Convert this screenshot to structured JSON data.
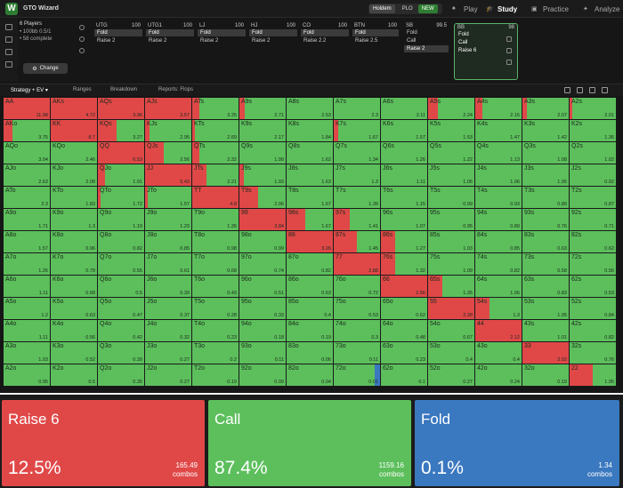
{
  "app": {
    "title": "GTO Wizard",
    "logo": "W"
  },
  "mode_toggle": [
    "Holdem",
    "PLO"
  ],
  "mode_new_badge": "NEW",
  "nav": [
    {
      "label": "Play",
      "icon": "spade-icon",
      "active": false
    },
    {
      "label": "Study",
      "icon": "graduation-cap-icon",
      "active": true
    },
    {
      "label": "Practice",
      "icon": "controller-icon",
      "active": false
    },
    {
      "label": "Analyze",
      "icon": "lightbulb-icon",
      "active": false
    }
  ],
  "game": {
    "players": "6 Players",
    "stakes": "• 100bb 0.5/1",
    "complete": "• 58 complete",
    "change_label": "Change"
  },
  "positions": [
    {
      "name": "UTG",
      "stack": "100",
      "actions": [
        "Fold",
        "Raise 2"
      ],
      "selected": 0
    },
    {
      "name": "UTG1",
      "stack": "100",
      "actions": [
        "Fold",
        "Raise 2"
      ],
      "selected": 0
    },
    {
      "name": "LJ",
      "stack": "100",
      "actions": [
        "Fold",
        "Raise 2"
      ],
      "selected": 0
    },
    {
      "name": "HJ",
      "stack": "100",
      "actions": [
        "Fold",
        "Raise 2"
      ],
      "selected": 0
    },
    {
      "name": "CO",
      "stack": "100",
      "actions": [
        "Fold",
        "Raise 2.2"
      ],
      "selected": 0
    },
    {
      "name": "BTN",
      "stack": "100",
      "actions": [
        "Fold",
        "Raise 2.5"
      ],
      "selected": 0
    },
    {
      "name": "SB",
      "stack": "99.5",
      "actions": [
        "Fold",
        "Call",
        "Raise 2"
      ],
      "selected": 2
    },
    {
      "name": "BB",
      "stack": "98",
      "actions": [
        "Fold",
        "Call",
        "Raise 6"
      ],
      "selected": -1,
      "current": true
    }
  ],
  "tabs": [
    "Strategy + EV",
    "Ranges",
    "Breakdown",
    "Reports: Flops"
  ],
  "colors": {
    "raise": "#e04848",
    "call": "#5cbf5c",
    "fold": "#3a78c0",
    "accent": "#5ab36a"
  },
  "grid": {
    "rows": [
      [
        [
          "AA",
          "11.98",
          1
        ],
        [
          "AKs",
          "4.72",
          1
        ],
        [
          "AQs",
          "3.96",
          1
        ],
        [
          "AJs",
          "3.57",
          1
        ],
        [
          "ATs",
          "3.25",
          0.15
        ],
        [
          "A9s",
          "2.71",
          0.12
        ],
        [
          "A8s",
          "2.53",
          0
        ],
        [
          "A7s",
          "2.3",
          0
        ],
        [
          "A6s",
          "2.11",
          0
        ],
        [
          "A5s",
          "2.24",
          0.22
        ],
        [
          "A4s",
          "2.15",
          0.15
        ],
        [
          "A3s",
          "2.07",
          0.1
        ],
        [
          "A2s",
          "2.01",
          0.05
        ]
      ],
      [
        [
          "AKo",
          "3.75",
          0.2
        ],
        [
          "KK",
          "8.7",
          1
        ],
        [
          "KQs",
          "3.27",
          0.4
        ],
        [
          "KJs",
          "2.95",
          0.1
        ],
        [
          "KTs",
          "2.69",
          0.05
        ],
        [
          "K9s",
          "2.17",
          0
        ],
        [
          "K8s",
          "1.84",
          0
        ],
        [
          "K7s",
          "1.67",
          0.1
        ],
        [
          "K6s",
          "1.57",
          0
        ],
        [
          "K5s",
          "1.53",
          0
        ],
        [
          "K4s",
          "1.47",
          0
        ],
        [
          "K3s",
          "1.42",
          0
        ],
        [
          "K2s",
          "1.36",
          0
        ]
      ],
      [
        [
          "AQo",
          "3.04",
          0
        ],
        [
          "KQo",
          "2.46",
          0
        ],
        [
          "QQ",
          "6.53",
          1
        ],
        [
          "QJs",
          "2.56",
          0.4
        ],
        [
          "QTs",
          "2.32",
          0.15
        ],
        [
          "Q9s",
          "1.99",
          0
        ],
        [
          "Q8s",
          "1.62",
          0
        ],
        [
          "Q7s",
          "1.34",
          0
        ],
        [
          "Q6s",
          "1.26",
          0
        ],
        [
          "Q5s",
          "1.22",
          0
        ],
        [
          "Q4s",
          "1.13",
          0
        ],
        [
          "Q3s",
          "1.08",
          0
        ],
        [
          "Q2s",
          "1.02",
          0
        ]
      ],
      [
        [
          "AJo",
          "2.63",
          0
        ],
        [
          "KJo",
          "2.08",
          0
        ],
        [
          "QJo",
          "1.91",
          0.15
        ],
        [
          "JJ",
          "5.43",
          1
        ],
        [
          "JTs",
          "2.21",
          0.3
        ],
        [
          "J9s",
          "1.93",
          0.1
        ],
        [
          "J8s",
          "1.63",
          0
        ],
        [
          "J7s",
          "1.3",
          0
        ],
        [
          "J6s",
          "1.11",
          0
        ],
        [
          "J5s",
          "1.06",
          0
        ],
        [
          "J4s",
          "1.06",
          0
        ],
        [
          "J3s",
          "1.05",
          0
        ],
        [
          "J2s",
          "0.92",
          0
        ]
      ],
      [
        [
          "ATo",
          "2.3",
          0
        ],
        [
          "KTo",
          "1.83",
          0
        ],
        [
          "QTo",
          "1.72",
          0.05
        ],
        [
          "JTo",
          "1.57",
          0.05
        ],
        [
          "TT",
          "4.8",
          1
        ],
        [
          "T9s",
          "2.06",
          0.4
        ],
        [
          "T8s",
          "1.67",
          0
        ],
        [
          "T7s",
          "1.39",
          0
        ],
        [
          "T6s",
          "1.15",
          0
        ],
        [
          "T5s",
          "0.99",
          0
        ],
        [
          "T4s",
          "0.93",
          0
        ],
        [
          "T3s",
          "0.89",
          0
        ],
        [
          "T2s",
          "0.87",
          0
        ]
      ],
      [
        [
          "A9o",
          "1.71",
          0
        ],
        [
          "K9o",
          "1.3",
          0
        ],
        [
          "Q9o",
          "1.19",
          0
        ],
        [
          "J9o",
          "1.23",
          0
        ],
        [
          "T9o",
          "1.35",
          0
        ],
        [
          "99",
          "3.84",
          1
        ],
        [
          "98s",
          "1.67",
          0.4
        ],
        [
          "97s",
          "1.41",
          0.35
        ],
        [
          "96s",
          "1.07",
          0
        ],
        [
          "95s",
          "0.95",
          0
        ],
        [
          "94s",
          "0.89",
          0
        ],
        [
          "93s",
          "0.76",
          0
        ],
        [
          "92s",
          "0.71",
          0
        ]
      ],
      [
        [
          "A8o",
          "1.57",
          0
        ],
        [
          "K8o",
          "0.96",
          0
        ],
        [
          "Q8o",
          "0.82",
          0
        ],
        [
          "J8o",
          "0.85",
          0
        ],
        [
          "T8o",
          "0.98",
          0
        ],
        [
          "98o",
          "0.99",
          0
        ],
        [
          "88",
          "3.26",
          1
        ],
        [
          "87s",
          "1.45",
          0.5
        ],
        [
          "86s",
          "1.27",
          0.3
        ],
        [
          "85s",
          "1.03",
          0
        ],
        [
          "84s",
          "0.85",
          0
        ],
        [
          "83s",
          "0.63",
          0
        ],
        [
          "82s",
          "0.62",
          0
        ]
      ],
      [
        [
          "A7o",
          "1.26",
          0
        ],
        [
          "K7o",
          "0.79",
          0
        ],
        [
          "Q7o",
          "0.55",
          0
        ],
        [
          "J7o",
          "0.61",
          0
        ],
        [
          "T7o",
          "0.68",
          0
        ],
        [
          "97o",
          "0.74",
          0
        ],
        [
          "87o",
          "0.82",
          0
        ],
        [
          "77",
          "2.88",
          1
        ],
        [
          "76s",
          "1.32",
          0.3
        ],
        [
          "75s",
          "1.09",
          0
        ],
        [
          "74s",
          "0.82",
          0
        ],
        [
          "73s",
          "0.58",
          0
        ],
        [
          "72s",
          "0.56",
          0
        ]
      ],
      [
        [
          "A6o",
          "1.11",
          0
        ],
        [
          "K6o",
          "0.68",
          0
        ],
        [
          "Q6o",
          "0.5",
          0
        ],
        [
          "J6o",
          "0.39",
          0
        ],
        [
          "T6o",
          "0.43",
          0
        ],
        [
          "96o",
          "0.51",
          0
        ],
        [
          "86o",
          "0.63",
          0
        ],
        [
          "76o",
          "0.72",
          0
        ],
        [
          "66",
          "2.56",
          1
        ],
        [
          "65s",
          "1.35",
          0.3
        ],
        [
          "64s",
          "1.06",
          0
        ],
        [
          "63s",
          "0.83",
          0
        ],
        [
          "62s",
          "0.53",
          0
        ]
      ],
      [
        [
          "A5o",
          "1.2",
          0
        ],
        [
          "K5o",
          "0.63",
          0
        ],
        [
          "Q5o",
          "0.47",
          0
        ],
        [
          "J5o",
          "0.37",
          0
        ],
        [
          "T5o",
          "0.28",
          0
        ],
        [
          "95o",
          "0.33",
          0
        ],
        [
          "85o",
          "0.4",
          0
        ],
        [
          "75o",
          "0.53",
          0
        ],
        [
          "65o",
          "0.62",
          0
        ],
        [
          "55",
          "2.28",
          1
        ],
        [
          "54s",
          "1.3",
          0.3
        ],
        [
          "53s",
          "1.05",
          0
        ],
        [
          "52s",
          "0.84",
          0
        ]
      ],
      [
        [
          "A4o",
          "1.11",
          0
        ],
        [
          "K4o",
          "0.56",
          0
        ],
        [
          "Q4o",
          "0.42",
          0
        ],
        [
          "J4o",
          "0.32",
          0
        ],
        [
          "T4o",
          "0.23",
          0
        ],
        [
          "94o",
          "0.18",
          0
        ],
        [
          "84o",
          "0.19",
          0
        ],
        [
          "74o",
          "0.3",
          0
        ],
        [
          "64o",
          "0.48",
          0
        ],
        [
          "54o",
          "0.67",
          0
        ],
        [
          "44",
          "2.12",
          1
        ],
        [
          "43s",
          "1.01",
          0
        ],
        [
          "42s",
          "0.82",
          0
        ]
      ],
      [
        [
          "A3o",
          "1.03",
          0
        ],
        [
          "K3o",
          "0.52",
          0
        ],
        [
          "Q3o",
          "0.39",
          0
        ],
        [
          "J3o",
          "0.27",
          0
        ],
        [
          "T3o",
          "0.2",
          0
        ],
        [
          "93o",
          "0.11",
          0
        ],
        [
          "83o",
          "0.06",
          0
        ],
        [
          "73o",
          "0.11",
          0
        ],
        [
          "63o",
          "0.23",
          0
        ],
        [
          "53o",
          "0.4",
          0
        ],
        [
          "43o",
          "0.4",
          0
        ],
        [
          "33",
          "2.02",
          1
        ],
        [
          "32s",
          "0.76",
          0
        ]
      ],
      [
        [
          "A2o",
          "0.95",
          0
        ],
        [
          "K2o",
          "0.5",
          0
        ],
        [
          "Q2o",
          "0.35",
          0
        ],
        [
          "J2o",
          "0.27",
          0
        ],
        [
          "T2o",
          "0.19",
          0
        ],
        [
          "92o",
          "0.09",
          0
        ],
        [
          "82o",
          "0.04",
          0
        ],
        [
          "72o",
          "0.01",
          0
        ],
        [
          "62o",
          "0.1",
          0
        ],
        [
          "52o",
          "0.27",
          0
        ],
        [
          "42o",
          "0.24",
          0
        ],
        [
          "32o",
          "0.19",
          0
        ],
        [
          "22",
          "1.95",
          0.5
        ]
      ]
    ]
  },
  "summary": [
    {
      "label": "Raise 6",
      "pct": "12.5%",
      "combos": "165.49",
      "combos_word": "combos",
      "color": "#e04848"
    },
    {
      "label": "Call",
      "pct": "87.4%",
      "combos": "1159.16",
      "combos_word": "combos",
      "color": "#5cbf5c"
    },
    {
      "label": "Fold",
      "pct": "0.1%",
      "combos": "1.34",
      "combos_word": "combos",
      "color": "#3a78c0"
    }
  ]
}
